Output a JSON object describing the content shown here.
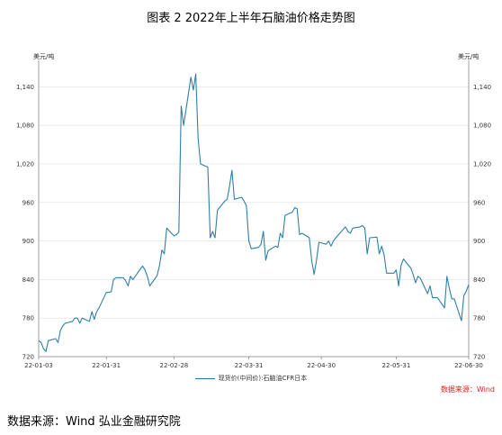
{
  "figure": {
    "title": "图表 2 2022年上半年石脑油价格走势图",
    "source_red": "数据来源：Wind",
    "source_bottom": "数据来源：Wind 弘业金融研究院"
  },
  "chart_data": {
    "type": "line",
    "title": "",
    "y_unit_left": "美元/吨",
    "y_unit_right": "美元/吨",
    "ylim": [
      720,
      1170
    ],
    "yticks": [
      720,
      780,
      840,
      900,
      960,
      1020,
      1080,
      1140
    ],
    "ytick_labels": [
      "720",
      "780",
      "840",
      "900",
      "960",
      "1,020",
      "1,080",
      "1,140"
    ],
    "x_start": "2022-01-03",
    "x_end": "2022-06-30",
    "xticks": [
      "2022-01-03",
      "2022-01-31",
      "2022-02-28",
      "2022-03-31",
      "2022-04-30",
      "2022-05-31",
      "2022-06-30"
    ],
    "xtick_labels": [
      "22-01-03",
      "22-01-31",
      "22-02-28",
      "22-03-31",
      "22-04-30",
      "22-05-31",
      "22-06-30"
    ],
    "grid": "horizontal",
    "legend_position": "bottom",
    "colors": {
      "line": "#2e7fa8",
      "axis": "#888888",
      "grid": "#dddddd"
    },
    "series": [
      {
        "name": "现货价(中间价):石脑油CFR日本",
        "x": [
          "2022-01-03",
          "2022-01-04",
          "2022-01-05",
          "2022-01-06",
          "2022-01-07",
          "2022-01-10",
          "2022-01-11",
          "2022-01-12",
          "2022-01-13",
          "2022-01-14",
          "2022-01-17",
          "2022-01-18",
          "2022-01-19",
          "2022-01-20",
          "2022-01-21",
          "2022-01-24",
          "2022-01-25",
          "2022-01-26",
          "2022-01-27",
          "2022-01-28",
          "2022-01-31",
          "2022-02-01",
          "2022-02-02",
          "2022-02-03",
          "2022-02-04",
          "2022-02-07",
          "2022-02-08",
          "2022-02-09",
          "2022-02-10",
          "2022-02-11",
          "2022-02-14",
          "2022-02-15",
          "2022-02-16",
          "2022-02-17",
          "2022-02-18",
          "2022-02-21",
          "2022-02-22",
          "2022-02-23",
          "2022-02-24",
          "2022-02-25",
          "2022-02-28",
          "2022-03-01",
          "2022-03-02",
          "2022-03-03",
          "2022-03-04",
          "2022-03-07",
          "2022-03-08",
          "2022-03-09",
          "2022-03-10",
          "2022-03-11",
          "2022-03-14",
          "2022-03-15",
          "2022-03-16",
          "2022-03-17",
          "2022-03-18",
          "2022-03-21",
          "2022-03-22",
          "2022-03-23",
          "2022-03-24",
          "2022-03-25",
          "2022-03-28",
          "2022-03-29",
          "2022-03-30",
          "2022-03-31",
          "2022-04-01",
          "2022-04-04",
          "2022-04-05",
          "2022-04-06",
          "2022-04-07",
          "2022-04-08",
          "2022-04-11",
          "2022-04-12",
          "2022-04-13",
          "2022-04-14",
          "2022-04-15",
          "2022-04-18",
          "2022-04-19",
          "2022-04-20",
          "2022-04-21",
          "2022-04-22",
          "2022-04-25",
          "2022-04-26",
          "2022-04-27",
          "2022-04-28",
          "2022-04-29",
          "2022-05-02",
          "2022-05-03",
          "2022-05-04",
          "2022-05-05",
          "2022-05-06",
          "2022-05-09",
          "2022-05-10",
          "2022-05-11",
          "2022-05-12",
          "2022-05-13",
          "2022-05-16",
          "2022-05-17",
          "2022-05-18",
          "2022-05-19",
          "2022-05-20",
          "2022-05-23",
          "2022-05-24",
          "2022-05-25",
          "2022-05-26",
          "2022-05-27",
          "2022-05-30",
          "2022-05-31",
          "2022-06-01",
          "2022-06-02",
          "2022-06-03",
          "2022-06-06",
          "2022-06-07",
          "2022-06-08",
          "2022-06-09",
          "2022-06-10",
          "2022-06-13",
          "2022-06-14",
          "2022-06-15",
          "2022-06-16",
          "2022-06-17",
          "2022-06-20",
          "2022-06-21",
          "2022-06-22",
          "2022-06-23",
          "2022-06-24",
          "2022-06-27",
          "2022-06-28",
          "2022-06-29",
          "2022-06-30"
        ],
        "values": [
          745,
          742,
          732,
          728,
          745,
          748,
          742,
          761,
          768,
          772,
          775,
          780,
          780,
          772,
          780,
          775,
          790,
          778,
          790,
          796,
          820,
          820,
          821,
          840,
          843,
          843,
          838,
          830,
          845,
          840,
          856,
          861,
          855,
          845,
          830,
          846,
          862,
          886,
          880,
          920,
          908,
          910,
          914,
          1110,
          1080,
          1155,
          1135,
          1160,
          1060,
          1020,
          1015,
          905,
          915,
          905,
          948,
          962,
          965,
          985,
          1010,
          965,
          968,
          962,
          955,
          900,
          888,
          890,
          895,
          915,
          870,
          885,
          892,
          890,
          912,
          905,
          940,
          945,
          952,
          950,
          910,
          912,
          905,
          870,
          848,
          870,
          898,
          895,
          900,
          892,
          900,
          905,
          918,
          922,
          915,
          912,
          920,
          922,
          924,
          920,
          880,
          905,
          906,
          880,
          892,
          878,
          850,
          850,
          855,
          830,
          862,
          872,
          858,
          848,
          835,
          845,
          842,
          818,
          830,
          812,
          812,
          812,
          796,
          845,
          826,
          810,
          810,
          776,
          815,
          822,
          832
        ]
      }
    ]
  }
}
